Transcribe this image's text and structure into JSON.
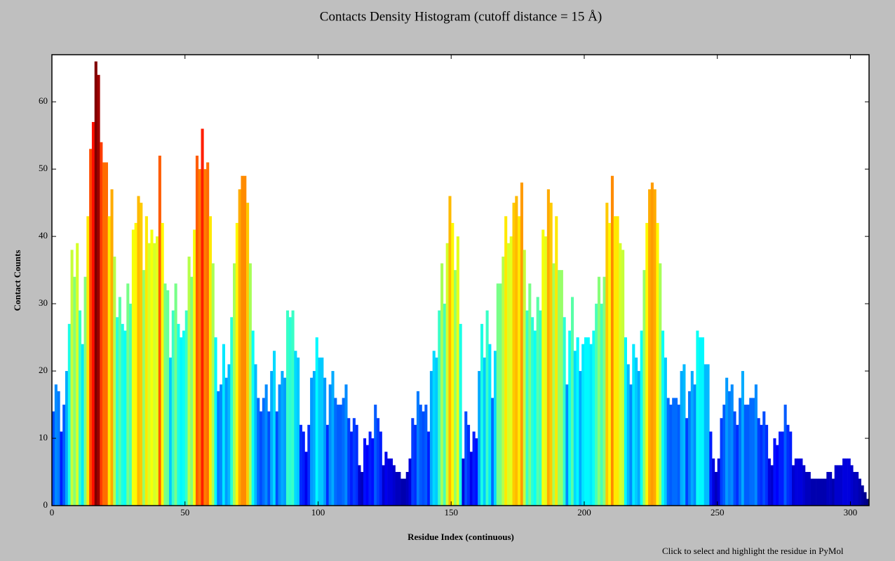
{
  "chart_data": {
    "type": "bar",
    "title": "Contacts Density Histogram (cutoff distance = 15 Å)",
    "xlabel": "Residue Index (continuous)",
    "ylabel": "Contact Counts",
    "annotation": "Click to select and highlight the residue in PyMol",
    "colormap": "jet",
    "x": [
      0,
      1,
      2,
      3,
      4,
      5,
      6,
      7,
      8,
      9,
      10,
      11,
      12,
      13,
      14,
      15,
      16,
      17,
      18,
      19,
      20,
      21,
      22,
      23,
      24,
      25,
      26,
      27,
      28,
      29,
      30,
      31,
      32,
      33,
      34,
      35,
      36,
      37,
      38,
      39,
      40,
      41,
      42,
      43,
      44,
      45,
      46,
      47,
      48,
      49,
      50,
      51,
      52,
      53,
      54,
      55,
      56,
      57,
      58,
      59,
      60,
      61,
      62,
      63,
      64,
      65,
      66,
      67,
      68,
      69,
      70,
      71,
      72,
      73,
      74,
      75,
      76,
      77,
      78,
      79,
      80,
      81,
      82,
      83,
      84,
      85,
      86,
      87,
      88,
      89,
      90,
      91,
      92,
      93,
      94,
      95,
      96,
      97,
      98,
      99,
      100,
      101,
      102,
      103,
      104,
      105,
      106,
      107,
      108,
      109,
      110,
      111,
      112,
      113,
      114,
      115,
      116,
      117,
      118,
      119,
      120,
      121,
      122,
      123,
      124,
      125,
      126,
      127,
      128,
      129,
      130,
      131,
      132,
      133,
      134,
      135,
      136,
      137,
      138,
      139,
      140,
      141,
      142,
      143,
      144,
      145,
      146,
      147,
      148,
      149,
      150,
      151,
      152,
      153,
      154,
      155,
      156,
      157,
      158,
      159,
      160,
      161,
      162,
      163,
      164,
      165,
      166,
      167,
      168,
      169,
      170,
      171,
      172,
      173,
      174,
      175,
      176,
      177,
      178,
      179,
      180,
      181,
      182,
      183,
      184,
      185,
      186,
      187,
      188,
      189,
      190,
      191,
      192,
      193,
      194,
      195,
      196,
      197,
      198,
      199,
      200,
      201,
      202,
      203,
      204,
      205,
      206,
      207,
      208,
      209,
      210,
      211,
      212,
      213,
      214,
      215,
      216,
      217,
      218,
      219,
      220,
      221,
      222,
      223,
      224,
      225,
      226,
      227,
      228,
      229,
      230,
      231,
      232,
      233,
      234,
      235,
      236,
      237,
      238,
      239,
      240,
      241,
      242,
      243,
      244,
      245,
      246,
      247,
      248,
      249,
      250,
      251,
      252,
      253,
      254,
      255,
      256,
      257,
      258,
      259,
      260,
      261,
      262,
      263,
      264,
      265,
      266,
      267,
      268,
      269,
      270,
      271,
      272,
      273,
      274,
      275,
      276,
      277,
      278,
      279,
      280,
      281,
      282,
      283,
      284,
      285,
      286,
      287,
      288,
      289,
      290,
      291,
      292,
      293,
      294,
      295,
      296,
      297,
      298,
      299,
      300,
      301,
      302,
      303,
      304,
      305,
      306
    ],
    "values": [
      14,
      18,
      17,
      11,
      15,
      20,
      27,
      38,
      34,
      39,
      29,
      24,
      34,
      43,
      53,
      57,
      66,
      64,
      54,
      51,
      51,
      43,
      47,
      37,
      28,
      31,
      27,
      26,
      33,
      30,
      41,
      42,
      46,
      45,
      35,
      43,
      39,
      41,
      39,
      40,
      52,
      42,
      33,
      32,
      22,
      29,
      33,
      27,
      25,
      26,
      29,
      37,
      34,
      41,
      52,
      50,
      56,
      50,
      51,
      43,
      36,
      25,
      17,
      18,
      24,
      19,
      21,
      28,
      36,
      42,
      47,
      49,
      49,
      45,
      36,
      26,
      21,
      16,
      14,
      16,
      18,
      14,
      20,
      23,
      14,
      18,
      20,
      19,
      29,
      28,
      29,
      23,
      22,
      12,
      11,
      8,
      12,
      19,
      20,
      25,
      22,
      22,
      19,
      12,
      18,
      20,
      16,
      15,
      15,
      16,
      18,
      13,
      11,
      13,
      12,
      6,
      5,
      10,
      9,
      11,
      10,
      15,
      13,
      11,
      6,
      8,
      7,
      7,
      6,
      5,
      5,
      4,
      4,
      5,
      7,
      13,
      12,
      17,
      15,
      14,
      15,
      11,
      20,
      23,
      22,
      29,
      36,
      30,
      39,
      46,
      42,
      35,
      40,
      27,
      7,
      14,
      12,
      8,
      11,
      10,
      20,
      27,
      22,
      29,
      24,
      16,
      23,
      33,
      33,
      37,
      43,
      39,
      40,
      45,
      46,
      43,
      48,
      38,
      29,
      33,
      28,
      26,
      31,
      29,
      41,
      40,
      47,
      45,
      36,
      43,
      35,
      35,
      28,
      18,
      26,
      31,
      23,
      25,
      20,
      24,
      25,
      25,
      24,
      26,
      30,
      34,
      30,
      34,
      45,
      42,
      49,
      43,
      43,
      39,
      38,
      25,
      21,
      18,
      24,
      22,
      20,
      26,
      35,
      42,
      47,
      48,
      47,
      42,
      36,
      26,
      22,
      16,
      15,
      16,
      16,
      15,
      20,
      21,
      13,
      17,
      20,
      18,
      26,
      25,
      25,
      21,
      21,
      11,
      7,
      5,
      7,
      13,
      15,
      19,
      17,
      18,
      14,
      12,
      16,
      20,
      15,
      15,
      16,
      16,
      18,
      13,
      12,
      14,
      12,
      7,
      6,
      10,
      9,
      11,
      11,
      15,
      12,
      11,
      6,
      7,
      7,
      7,
      6,
      5,
      5,
      4,
      4,
      4,
      4,
      4,
      4,
      5,
      5,
      4,
      6,
      6,
      6,
      7,
      7,
      7,
      6,
      5,
      5,
      4,
      3,
      2,
      1
    ],
    "xlim": [
      0,
      307
    ],
    "xticks": [
      0,
      50,
      100,
      150,
      200,
      250,
      300
    ],
    "ylim": [
      0,
      67
    ],
    "yticks": [
      0,
      10,
      20,
      30,
      40,
      50,
      60
    ]
  }
}
